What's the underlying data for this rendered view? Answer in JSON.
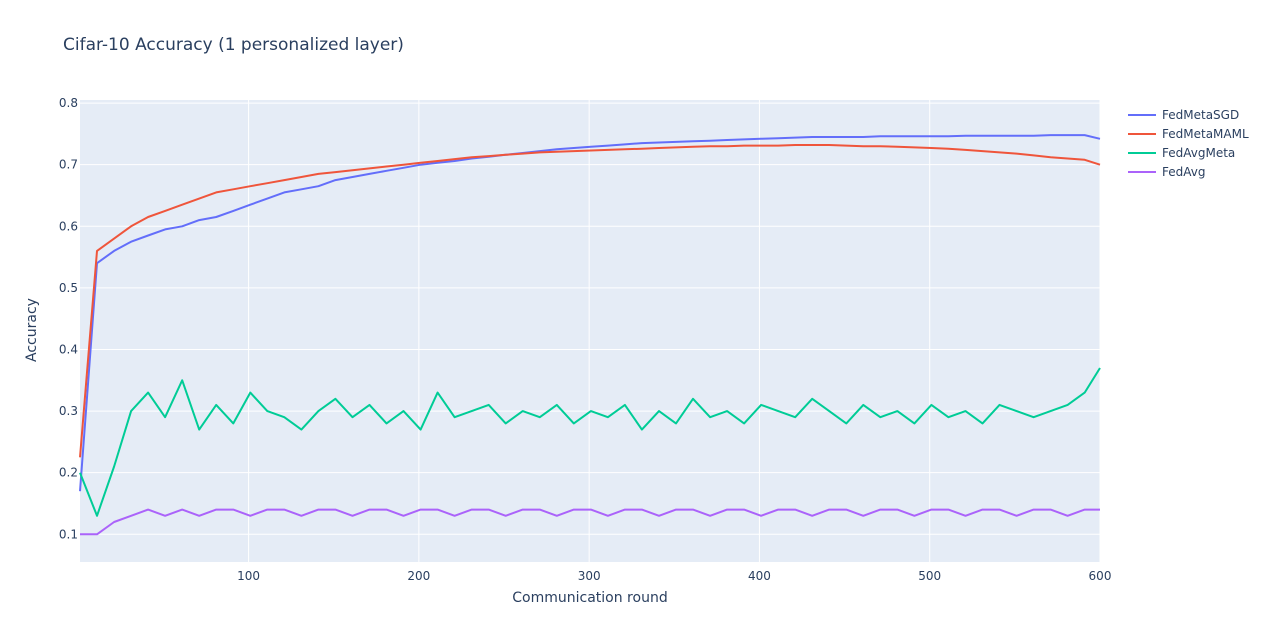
{
  "chart_data": {
    "type": "line",
    "title": "Cifar-10 Accuracy (1 personalized layer)",
    "xlabel": "Communication round",
    "ylabel": "Accuracy",
    "xlim": [
      1,
      600
    ],
    "ylim": [
      0.055,
      0.805
    ],
    "x_ticks": [
      100,
      200,
      300,
      400,
      500,
      600
    ],
    "y_ticks": [
      0.1,
      0.2,
      0.3,
      0.4,
      0.5,
      0.6,
      0.7,
      0.8
    ],
    "grid": true,
    "legend_position": "top-right",
    "background_color": "#E5ECF6",
    "series": [
      {
        "name": "FedMetaSGD",
        "color": "#636EFA",
        "x_start": 1,
        "x_step": 10,
        "values": [
          0.17,
          0.54,
          0.56,
          0.575,
          0.585,
          0.595,
          0.6,
          0.61,
          0.615,
          0.625,
          0.635,
          0.645,
          0.655,
          0.66,
          0.665,
          0.675,
          0.68,
          0.685,
          0.69,
          0.695,
          0.7,
          0.703,
          0.706,
          0.71,
          0.713,
          0.716,
          0.719,
          0.722,
          0.725,
          0.727,
          0.729,
          0.731,
          0.733,
          0.735,
          0.736,
          0.737,
          0.738,
          0.739,
          0.74,
          0.741,
          0.742,
          0.743,
          0.744,
          0.745,
          0.745,
          0.745,
          0.745,
          0.746,
          0.746,
          0.746,
          0.746,
          0.746,
          0.747,
          0.747,
          0.747,
          0.747,
          0.747,
          0.748,
          0.748,
          0.748,
          0.742
        ]
      },
      {
        "name": "FedMetaMAML",
        "color": "#EF553B",
        "x_start": 1,
        "x_step": 10,
        "values": [
          0.225,
          0.56,
          0.58,
          0.6,
          0.615,
          0.625,
          0.635,
          0.645,
          0.655,
          0.66,
          0.665,
          0.67,
          0.675,
          0.68,
          0.685,
          0.688,
          0.691,
          0.694,
          0.697,
          0.7,
          0.703,
          0.706,
          0.709,
          0.712,
          0.714,
          0.716,
          0.718,
          0.72,
          0.721,
          0.722,
          0.723,
          0.724,
          0.725,
          0.726,
          0.727,
          0.728,
          0.729,
          0.73,
          0.73,
          0.731,
          0.731,
          0.731,
          0.732,
          0.732,
          0.732,
          0.731,
          0.73,
          0.73,
          0.729,
          0.728,
          0.727,
          0.726,
          0.724,
          0.722,
          0.72,
          0.718,
          0.715,
          0.712,
          0.71,
          0.708,
          0.7
        ]
      },
      {
        "name": "FedAvgMeta",
        "color": "#00CC96",
        "x_start": 1,
        "x_step": 10,
        "values": [
          0.2,
          0.13,
          0.21,
          0.3,
          0.33,
          0.29,
          0.35,
          0.27,
          0.31,
          0.28,
          0.33,
          0.3,
          0.29,
          0.27,
          0.3,
          0.32,
          0.29,
          0.31,
          0.28,
          0.3,
          0.27,
          0.33,
          0.29,
          0.3,
          0.31,
          0.28,
          0.3,
          0.29,
          0.31,
          0.28,
          0.3,
          0.29,
          0.31,
          0.27,
          0.3,
          0.28,
          0.32,
          0.29,
          0.3,
          0.28,
          0.31,
          0.3,
          0.29,
          0.32,
          0.3,
          0.28,
          0.31,
          0.29,
          0.3,
          0.28,
          0.31,
          0.29,
          0.3,
          0.28,
          0.31,
          0.3,
          0.29,
          0.3,
          0.31,
          0.33,
          0.37
        ]
      },
      {
        "name": "FedAvg",
        "color": "#AB63FA",
        "x_start": 1,
        "x_step": 10,
        "values": [
          0.1,
          0.1,
          0.12,
          0.13,
          0.14,
          0.13,
          0.14,
          0.13,
          0.14,
          0.14,
          0.13,
          0.14,
          0.14,
          0.13,
          0.14,
          0.14,
          0.13,
          0.14,
          0.14,
          0.13,
          0.14,
          0.14,
          0.13,
          0.14,
          0.14,
          0.13,
          0.14,
          0.14,
          0.13,
          0.14,
          0.14,
          0.13,
          0.14,
          0.14,
          0.13,
          0.14,
          0.14,
          0.13,
          0.14,
          0.14,
          0.13,
          0.14,
          0.14,
          0.13,
          0.14,
          0.14,
          0.13,
          0.14,
          0.14,
          0.13,
          0.14,
          0.14,
          0.13,
          0.14,
          0.14,
          0.13,
          0.14,
          0.14,
          0.13,
          0.14,
          0.14
        ]
      }
    ]
  }
}
